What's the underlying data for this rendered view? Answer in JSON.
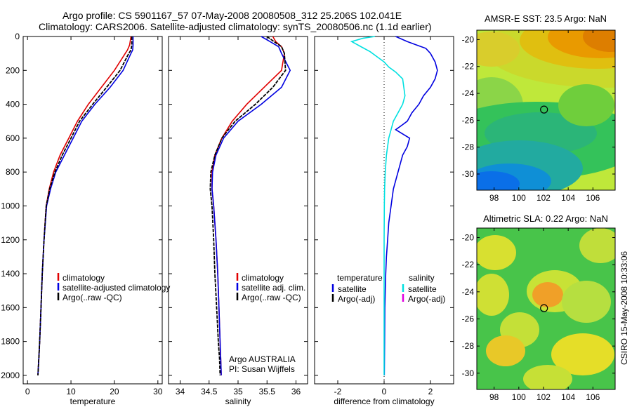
{
  "header": {
    "title_line1": "Argo profile: CS 5901167_57 07-May-2008 20080508_312 25.206S 102.041E",
    "title_line2": "Climatology: CARS2006. Satellite-adjusted climatology: synTS_20080506.nc (1.1d earlier)"
  },
  "side_caption": "CSIRO 15-May-2008 10:33:06",
  "colors": {
    "climatology": "#e00000",
    "satellite": "#0000e0",
    "argo": "#000000",
    "sal_satellite": "#00e0e0",
    "sal_argo": "#e000e0"
  },
  "chart_data": [
    {
      "type": "line",
      "xlabel": "temperature",
      "ylabel": "",
      "xlim": [
        -1,
        31
      ],
      "ylim": [
        2050,
        0
      ],
      "y_reversed": true,
      "xticks": [
        0,
        10,
        20,
        30
      ],
      "yticks": [
        0,
        200,
        400,
        600,
        800,
        1000,
        1200,
        1400,
        1600,
        1800,
        2000
      ],
      "legend": {
        "placement": "center-right",
        "entries": [
          {
            "label": "climatology",
            "color": "#e00000"
          },
          {
            "label": "satellite-adjusted climatology",
            "color": "#0000e0"
          },
          {
            "label": "Argo(..raw -QC)",
            "color": "#000000"
          }
        ]
      },
      "series": [
        {
          "name": "climatology",
          "color": "#e00000",
          "x": [
            23.8,
            23.5,
            23.0,
            22.5,
            20.0,
            17.0,
            14.0,
            11.5,
            9.5,
            7.5,
            6.0,
            5.0,
            4.3,
            3.8,
            3.4,
            3.1,
            2.8,
            2.6,
            2.4
          ],
          "y": [
            0,
            50,
            80,
            100,
            200,
            300,
            400,
            500,
            600,
            700,
            800,
            900,
            1000,
            1200,
            1400,
            1600,
            1800,
            1900,
            2000
          ]
        },
        {
          "name": "satellite-adjusted climatology",
          "color": "#0000e0",
          "x": [
            24.3,
            24.3,
            24.2,
            23.8,
            22.0,
            19.0,
            15.5,
            12.5,
            10.5,
            8.5,
            6.5,
            5.3,
            4.4,
            3.8,
            3.4,
            3.1,
            2.8,
            2.6,
            2.4
          ],
          "y": [
            0,
            50,
            80,
            100,
            200,
            300,
            400,
            500,
            600,
            700,
            800,
            900,
            1000,
            1200,
            1400,
            1600,
            1800,
            1900,
            2000
          ]
        },
        {
          "name": "Argo(..raw -QC)",
          "color": "#000000",
          "x": [
            24.0,
            24.0,
            23.8,
            23.3,
            21.3,
            18.2,
            15.0,
            12.0,
            10.0,
            8.0,
            6.3,
            5.1,
            4.3,
            3.8,
            3.4,
            3.1,
            2.8,
            2.6,
            2.4
          ],
          "y": [
            0,
            50,
            80,
            100,
            200,
            300,
            400,
            500,
            600,
            700,
            800,
            900,
            1000,
            1200,
            1400,
            1600,
            1800,
            1900,
            2000
          ]
        }
      ]
    },
    {
      "type": "line",
      "xlabel": "salinity",
      "xlim": [
        33.8,
        36.2
      ],
      "ylim": [
        2050,
        0
      ],
      "y_reversed": true,
      "xticks": [
        34,
        34.5,
        35,
        35.5,
        36
      ],
      "legend": {
        "placement": "center-right",
        "entries": [
          {
            "label": "climatology",
            "color": "#e00000"
          },
          {
            "label": "satellite adj. clim.",
            "color": "#0000e0"
          },
          {
            "label": "Argo(..raw -QC)",
            "color": "#000000"
          }
        ]
      },
      "annotation": [
        "Argo AUSTRALIA",
        "PI: Susan Wijffels"
      ],
      "series": [
        {
          "name": "climatology",
          "color": "#e00000",
          "x": [
            35.6,
            35.65,
            35.75,
            35.8,
            35.75,
            35.45,
            35.15,
            34.9,
            34.72,
            34.6,
            34.55,
            34.55,
            34.58,
            34.62,
            34.65,
            34.67,
            34.69,
            34.7,
            34.71
          ],
          "y": [
            0,
            30,
            60,
            100,
            200,
            300,
            400,
            500,
            600,
            700,
            800,
            900,
            1000,
            1200,
            1400,
            1600,
            1800,
            1900,
            2000
          ]
        },
        {
          "name": "satellite adj. clim.",
          "color": "#0000e0",
          "x": [
            35.4,
            35.55,
            35.7,
            35.75,
            35.9,
            35.75,
            35.4,
            35.0,
            34.75,
            34.62,
            34.56,
            34.55,
            34.58,
            34.62,
            34.65,
            34.67,
            34.69,
            34.7,
            34.71
          ],
          "y": [
            0,
            30,
            60,
            100,
            200,
            300,
            400,
            500,
            600,
            700,
            800,
            900,
            1000,
            1200,
            1400,
            1600,
            1800,
            1900,
            2000
          ]
        },
        {
          "name": "Argo(..raw -QC)",
          "color": "#000000",
          "x": [
            35.5,
            35.62,
            35.75,
            35.8,
            35.82,
            35.6,
            35.3,
            34.95,
            34.72,
            34.6,
            34.53,
            34.52,
            34.55,
            34.58,
            34.6,
            34.63,
            34.66,
            34.68,
            34.69
          ],
          "y": [
            0,
            30,
            60,
            100,
            200,
            300,
            400,
            500,
            600,
            700,
            800,
            900,
            1000,
            1200,
            1400,
            1600,
            1800,
            1900,
            2000
          ]
        }
      ]
    },
    {
      "type": "line",
      "xlabel": "difference from climatology",
      "xlim": [
        -3,
        3
      ],
      "ylim": [
        2050,
        0
      ],
      "y_reversed": true,
      "xticks": [
        -2,
        0,
        2
      ],
      "legend": {
        "placement": "center-right",
        "group_temperature": "temperature",
        "group_salinity": "salinity",
        "entries": [
          {
            "label": "satellite",
            "color": "#0000e0"
          },
          {
            "label": "Argo(-adj)",
            "color": "#000000"
          },
          {
            "label": "satellite",
            "color": "#00e0e0"
          },
          {
            "label": "Argo(-adj)",
            "color": "#e000e0"
          }
        ]
      },
      "series": [
        {
          "name": "temperature satellite",
          "color": "#0000e0",
          "x": [
            0.5,
            1.0,
            1.4,
            1.8,
            2.0,
            2.2,
            2.3,
            2.2,
            2.0,
            1.7,
            1.5,
            1.2,
            1.0,
            0.8,
            0.5,
            1.1,
            1.0,
            0.8,
            0.7,
            0.6,
            0.5,
            0.4,
            0.3,
            0.2,
            0.15,
            0.1,
            0.07,
            0.05,
            0.03,
            0.02,
            0.01
          ],
          "y": [
            0,
            30,
            50,
            70,
            100,
            150,
            200,
            250,
            300,
            350,
            400,
            450,
            500,
            520,
            550,
            600,
            650,
            700,
            750,
            800,
            850,
            900,
            1000,
            1100,
            1200,
            1300,
            1400,
            1500,
            1600,
            1800,
            2000
          ]
        },
        {
          "name": "salinity satellite",
          "color": "#00e0e0",
          "x": [
            -0.4,
            -0.9,
            -1.4,
            -1.0,
            -0.6,
            -0.3,
            0.0,
            0.2,
            0.5,
            0.8,
            0.9,
            0.8,
            0.6,
            0.4,
            0.3,
            0.2,
            0.1,
            0.05,
            0.02,
            0.01,
            0.0,
            0.0,
            0.0
          ],
          "y": [
            0,
            10,
            30,
            60,
            90,
            120,
            150,
            180,
            210,
            250,
            350,
            400,
            450,
            500,
            550,
            600,
            700,
            800,
            900,
            1000,
            1200,
            1600,
            2000
          ]
        }
      ]
    },
    {
      "type": "heatmap",
      "title": "AMSR-E SST: 23.5 Argo: NaN",
      "xlim": [
        96.6,
        107.8
      ],
      "ylim": [
        -31.2,
        -19.3
      ],
      "xticks": [
        98,
        100,
        102,
        104,
        106
      ],
      "yticks": [
        -20,
        -22,
        -24,
        -26,
        -28,
        -30
      ],
      "marker": {
        "x": 102.041,
        "y": -25.206
      }
    },
    {
      "type": "heatmap",
      "title": "Altimetric SLA: 0.22 Argo: NaN",
      "xlim": [
        96.6,
        107.8
      ],
      "ylim": [
        -31.2,
        -19.3
      ],
      "xticks": [
        98,
        100,
        102,
        104,
        106
      ],
      "yticks": [
        -20,
        -22,
        -24,
        -26,
        -28,
        -30
      ],
      "marker": {
        "x": 102.041,
        "y": -25.206
      }
    }
  ]
}
